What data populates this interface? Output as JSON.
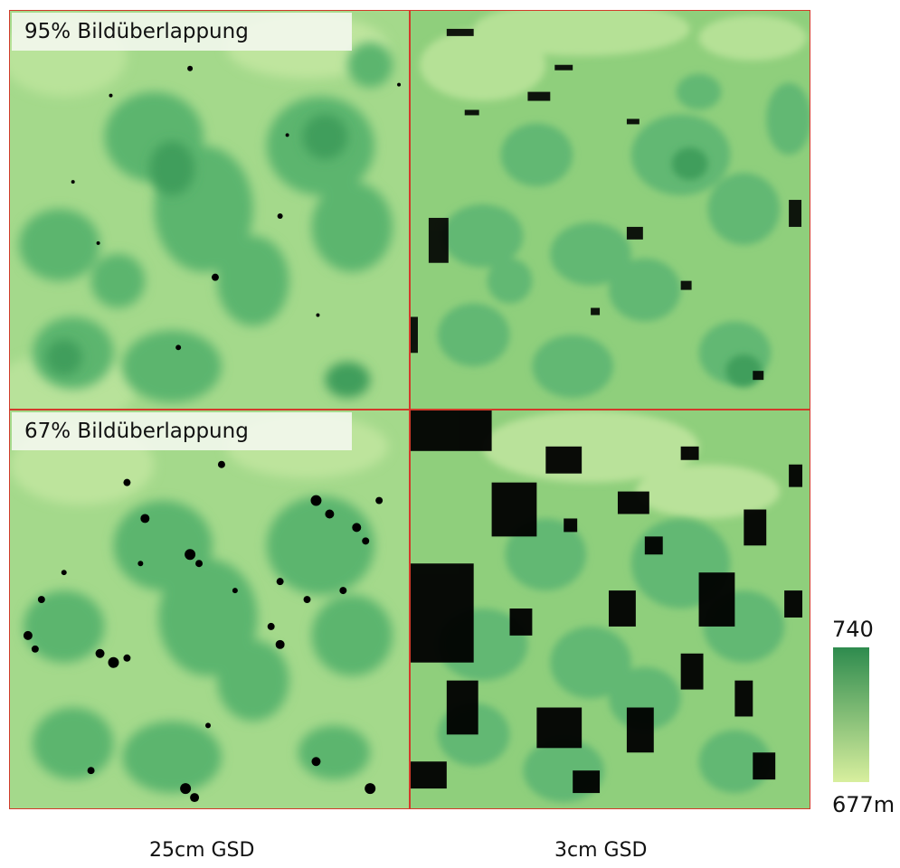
{
  "panels": {
    "top_left": {
      "overlap_label": "95% Bildüberlappung"
    },
    "bottom_left": {
      "overlap_label": "67% Bildüberlappung"
    }
  },
  "columns": {
    "left_label": "25cm GSD",
    "right_label": "3cm GSD"
  },
  "colorbar": {
    "max_label": "740",
    "min_label": "677m",
    "max_value": 740,
    "min_value": 677,
    "unit": "m",
    "color_high": "#2e8b4e",
    "color_low": "#d8ef9e"
  },
  "colors": {
    "panel_border": "#d23a2a",
    "nodata": "#000000"
  }
}
